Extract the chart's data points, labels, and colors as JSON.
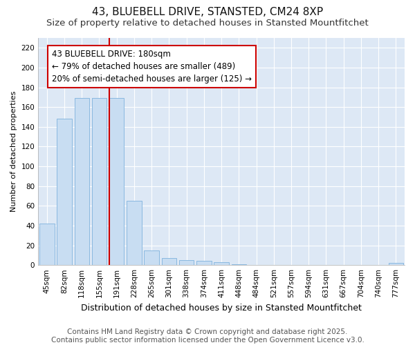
{
  "title": "43, BLUEBELL DRIVE, STANSTED, CM24 8XP",
  "subtitle": "Size of property relative to detached houses in Stansted Mountfitchet",
  "xlabel": "Distribution of detached houses by size in Stansted Mountfitchet",
  "ylabel": "Number of detached properties",
  "categories": [
    "45sqm",
    "82sqm",
    "118sqm",
    "155sqm",
    "191sqm",
    "228sqm",
    "265sqm",
    "301sqm",
    "338sqm",
    "374sqm",
    "411sqm",
    "448sqm",
    "484sqm",
    "521sqm",
    "557sqm",
    "594sqm",
    "631sqm",
    "667sqm",
    "704sqm",
    "740sqm",
    "777sqm"
  ],
  "values": [
    42,
    148,
    169,
    169,
    169,
    65,
    15,
    7,
    5,
    4,
    3,
    1,
    0,
    0,
    0,
    0,
    0,
    0,
    0,
    0,
    2
  ],
  "bar_color": "#c8ddf2",
  "bar_edge_color": "#89b8e0",
  "vline_x_index": 4,
  "vline_color": "#cc0000",
  "annotation_line1": "43 BLUEBELL DRIVE: 180sqm",
  "annotation_line2": "← 79% of detached houses are smaller (489)",
  "annotation_line3": "20% of semi-detached houses are larger (125) →",
  "annotation_box_color": "#ffffff",
  "annotation_box_edge": "#cc0000",
  "ylim": [
    0,
    230
  ],
  "yticks": [
    0,
    20,
    40,
    60,
    80,
    100,
    120,
    140,
    160,
    180,
    200,
    220
  ],
  "plot_bg_color": "#dde8f5",
  "fig_bg_color": "#ffffff",
  "grid_color": "#ffffff",
  "footer": "Contains HM Land Registry data © Crown copyright and database right 2025.\nContains public sector information licensed under the Open Government Licence v3.0.",
  "title_fontsize": 11,
  "subtitle_fontsize": 9.5,
  "footer_fontsize": 7.5,
  "annotation_fontsize": 8.5,
  "ylabel_fontsize": 8,
  "xlabel_fontsize": 9,
  "tick_fontsize": 7.5
}
